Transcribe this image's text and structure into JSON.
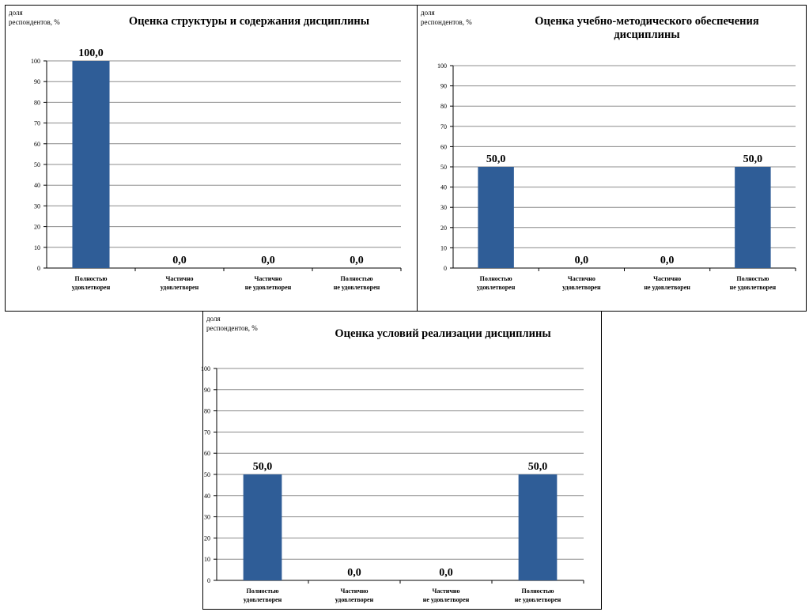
{
  "ylabel_lines": [
    "доля",
    "респондентов, %"
  ],
  "chart_data": [
    {
      "type": "bar",
      "title_lines": [
        "Оценка структуры и содержания дисциплины"
      ],
      "ylabel": "доля респондентов, %",
      "categories": [
        [
          "Полностью",
          "удовлетворен"
        ],
        [
          "Частично",
          "удовлетворен"
        ],
        [
          "Частично",
          "не удовлетворен"
        ],
        [
          "Полностью",
          "не удовлетворен"
        ]
      ],
      "values": [
        100.0,
        0.0,
        0.0,
        0.0
      ],
      "value_labels": [
        "100,0",
        "0,0",
        "0,0",
        "0,0"
      ],
      "yticks": [
        0,
        10,
        20,
        30,
        40,
        50,
        60,
        70,
        80,
        90,
        100
      ],
      "ylim": [
        0,
        100
      ],
      "grid": true,
      "bar_color": "#2f5d97"
    },
    {
      "type": "bar",
      "title_lines": [
        "Оценка учебно-методического обеспечения",
        "дисциплины"
      ],
      "ylabel": "доля респондентов, %",
      "categories": [
        [
          "Полностью",
          "удовлетворен"
        ],
        [
          "Частично",
          "удовлетворен"
        ],
        [
          "Частично",
          "не удовлетворен"
        ],
        [
          "Полностью",
          "не удовлетворен"
        ]
      ],
      "values": [
        50.0,
        0.0,
        0.0,
        50.0
      ],
      "value_labels": [
        "50,0",
        "0,0",
        "0,0",
        "50,0"
      ],
      "yticks": [
        0,
        10,
        20,
        30,
        40,
        50,
        60,
        70,
        80,
        90,
        100
      ],
      "ylim": [
        0,
        100
      ],
      "grid": true,
      "bar_color": "#2f5d97"
    },
    {
      "type": "bar",
      "title_lines": [
        "Оценка условий реализации дисциплины"
      ],
      "ylabel": "доля респондентов, %",
      "categories": [
        [
          "Полностью",
          "удовлетворен"
        ],
        [
          "Частично",
          "удовлетворен"
        ],
        [
          "Частично",
          "не удовлетворен"
        ],
        [
          "Полностью",
          "не удовлетворен"
        ]
      ],
      "values": [
        50.0,
        0.0,
        0.0,
        50.0
      ],
      "value_labels": [
        "50,0",
        "0,0",
        "0,0",
        "50,0"
      ],
      "yticks": [
        0,
        10,
        20,
        30,
        40,
        50,
        60,
        70,
        80,
        90,
        100
      ],
      "ylim": [
        0,
        100
      ],
      "grid": true,
      "bar_color": "#2f5d97"
    }
  ]
}
